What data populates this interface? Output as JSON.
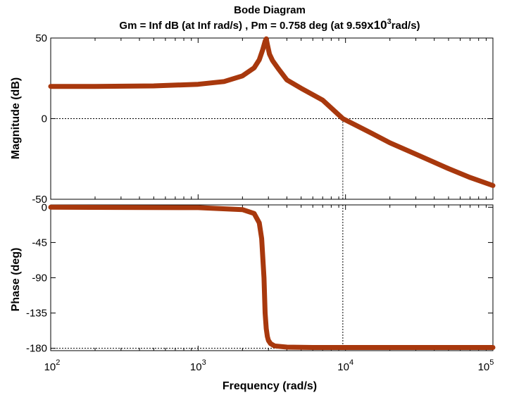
{
  "chart_data": {
    "type": "line",
    "title": "Bode Diagram",
    "subtitle": {
      "prefix": "Gm = Inf dB (at Inf rad/s) ,  Pm = 0.758 deg (at 9.59",
      "mult": "x10",
      "exp": "3",
      "suffix": "rad/s)"
    },
    "xlabel": "Frequency  (rad/s)",
    "x_scale": "log",
    "xlim": [
      100,
      100000
    ],
    "x_ticks": [
      {
        "base": "10",
        "exp": "2"
      },
      {
        "base": "10",
        "exp": "3"
      },
      {
        "base": "10",
        "exp": "4"
      },
      {
        "base": "10",
        "exp": "5"
      }
    ],
    "line_color": "#a8380d",
    "panels": [
      {
        "name": "magnitude",
        "ylabel": "Magnitude (dB)",
        "ylim": [
          -50,
          50
        ],
        "y_ticks": [
          "50",
          "0",
          "-50"
        ],
        "y_tick_values": [
          50,
          0,
          -50
        ],
        "reference_line": 0,
        "crossover_marker_x": 9590,
        "x": [
          100,
          200,
          500,
          1000,
          1500,
          2000,
          2400,
          2600,
          2750,
          2850,
          2900,
          2950,
          3050,
          3200,
          3500,
          4000,
          5000,
          7000,
          9590,
          15000,
          20000,
          30000,
          50000,
          70000,
          100000
        ],
        "y": [
          20,
          20,
          20.3,
          21.3,
          23,
          26.5,
          31.5,
          36.5,
          43,
          48,
          49.5,
          46,
          40,
          36,
          31,
          24,
          18.8,
          11.5,
          0,
          -9,
          -15,
          -22,
          -31,
          -36.5,
          -41.5
        ]
      },
      {
        "name": "phase",
        "ylabel": "Phase (deg)",
        "ylim": [
          -183,
          3
        ],
        "y_ticks": [
          "0",
          "-45",
          "-90",
          "-135",
          "-180"
        ],
        "y_tick_values": [
          0,
          -45,
          -90,
          -135,
          -180
        ],
        "reference_line": -180,
        "crossover_marker_x": 9590,
        "x": [
          100,
          1000,
          2000,
          2400,
          2600,
          2700,
          2800,
          2850,
          2900,
          2950,
          3000,
          3100,
          3300,
          4000,
          6000,
          10000,
          100000
        ],
        "y": [
          0,
          -0.5,
          -3,
          -8,
          -20,
          -40,
          -90,
          -135,
          -155,
          -165,
          -170,
          -174,
          -177,
          -178.5,
          -179,
          -179,
          -179
        ]
      }
    ]
  }
}
